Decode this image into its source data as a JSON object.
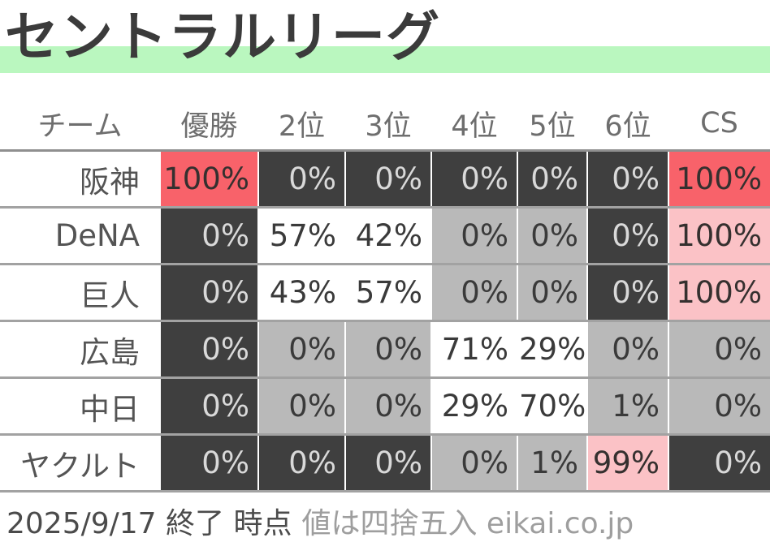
{
  "title": "セントラルリーグ",
  "colors": {
    "title_highlight_green": "#baf7bf",
    "cell_dark": "#3f3f3f",
    "cell_gray": "#b9b9b9",
    "cell_red": "#f8626a",
    "cell_pink": "#fbc2c6"
  },
  "table": {
    "columns": [
      "チーム",
      "優勝",
      "2位",
      "3位",
      "4位",
      "5位",
      "6位",
      "CS"
    ],
    "rows": [
      {
        "team": "阪神",
        "values": [
          "100%",
          "0%",
          "0%",
          "0%",
          "0%",
          "0%",
          "100%"
        ],
        "styles": [
          "red",
          "dark",
          "dark",
          "dark",
          "dark",
          "dark",
          "red"
        ]
      },
      {
        "team": "DeNA",
        "values": [
          "0%",
          "57%",
          "42%",
          "0%",
          "0%",
          "0%",
          "100%"
        ],
        "styles": [
          "dark",
          "plain",
          "plain",
          "gray",
          "gray",
          "dark",
          "pink"
        ]
      },
      {
        "team": "巨人",
        "values": [
          "0%",
          "43%",
          "57%",
          "0%",
          "0%",
          "0%",
          "100%"
        ],
        "styles": [
          "dark",
          "plain",
          "plain",
          "gray",
          "gray",
          "dark",
          "pink"
        ]
      },
      {
        "team": "広島",
        "values": [
          "0%",
          "0%",
          "0%",
          "71%",
          "29%",
          "0%",
          "0%"
        ],
        "styles": [
          "dark",
          "gray",
          "gray",
          "plain",
          "plain",
          "gray",
          "gray"
        ]
      },
      {
        "team": "中日",
        "values": [
          "0%",
          "0%",
          "0%",
          "29%",
          "70%",
          "1%",
          "0%"
        ],
        "styles": [
          "dark",
          "gray",
          "gray",
          "plain",
          "plain",
          "gray",
          "gray"
        ]
      },
      {
        "team": "ヤクルト",
        "values": [
          "0%",
          "0%",
          "0%",
          "0%",
          "1%",
          "99%",
          "0%"
        ],
        "styles": [
          "dark",
          "dark",
          "dark",
          "gray",
          "gray",
          "pink",
          "dark"
        ]
      }
    ]
  },
  "footer": {
    "timestamp": "2025/9/17 終了 時点",
    "note": "値は四捨五入 eikai.co.jp"
  },
  "chart_data": {
    "type": "table",
    "title": "セントラルリーグ",
    "unit": "%",
    "columns": [
      "チーム",
      "優勝",
      "2位",
      "3位",
      "4位",
      "5位",
      "6位",
      "CS"
    ],
    "rows": [
      {
        "team": "阪神",
        "優勝": 100,
        "2位": 0,
        "3位": 0,
        "4位": 0,
        "5位": 0,
        "6位": 0,
        "CS": 100
      },
      {
        "team": "DeNA",
        "優勝": 0,
        "2位": 57,
        "3位": 42,
        "4位": 0,
        "5位": 0,
        "6位": 0,
        "CS": 100
      },
      {
        "team": "巨人",
        "優勝": 0,
        "2位": 43,
        "3位": 57,
        "4位": 0,
        "5位": 0,
        "6位": 0,
        "CS": 100
      },
      {
        "team": "広島",
        "優勝": 0,
        "2位": 0,
        "3位": 0,
        "4位": 71,
        "5位": 29,
        "6位": 0,
        "CS": 0
      },
      {
        "team": "中日",
        "優勝": 0,
        "2位": 0,
        "3位": 0,
        "4位": 29,
        "5位": 70,
        "6位": 1,
        "CS": 0
      },
      {
        "team": "ヤクルト",
        "優勝": 0,
        "2位": 0,
        "3位": 0,
        "4位": 0,
        "5位": 1,
        "6位": 99,
        "CS": 0
      }
    ],
    "note": "値は四捨五入"
  }
}
